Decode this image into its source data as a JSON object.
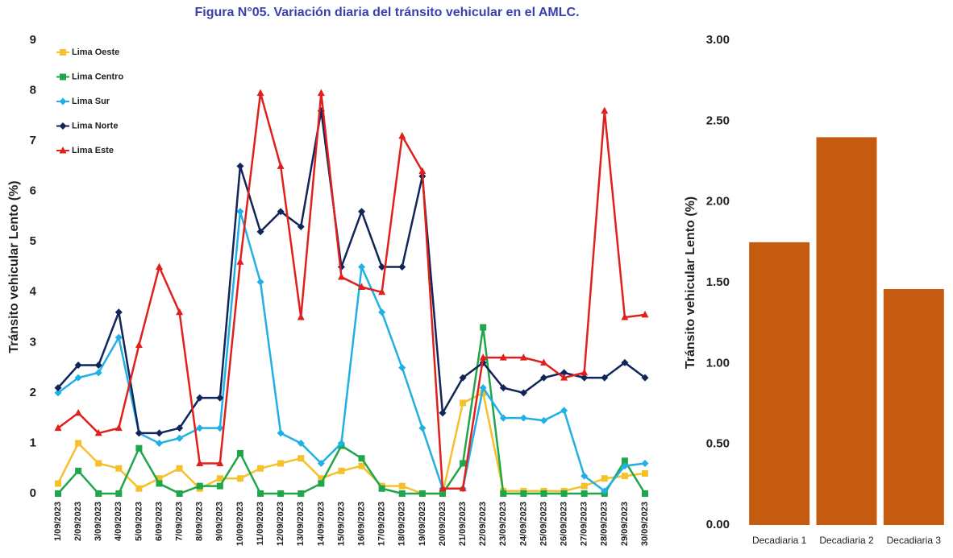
{
  "chart_data": [
    {
      "type": "line",
      "title": "Figura N°05. Variación diaria del tránsito vehicular en el AMLC.",
      "y_label": "Tránsito vehicular Lento (%)",
      "categories": [
        "1/09/2023",
        "2/09/2023",
        "3/09/2023",
        "4/09/2023",
        "5/09/2023",
        "6/09/2023",
        "7/09/2023",
        "8/09/2023",
        "9/09/2023",
        "10/09/2023",
        "11/09/2023",
        "12/09/2023",
        "13/09/2023",
        "14/09/2023",
        "15/09/2023",
        "16/09/2023",
        "17/09/2023",
        "18/09/2023",
        "19/09/2023",
        "20/09/2023",
        "21/09/2023",
        "22/09/2023",
        "23/09/2023",
        "24/09/2023",
        "25/09/2023",
        "26/09/2023",
        "27/09/2023",
        "28/09/2023",
        "29/09/2023",
        "30/09/2023"
      ],
      "ylim": [
        0,
        9
      ],
      "yticks": [
        0,
        1,
        2,
        3,
        4,
        5,
        6,
        7,
        8,
        9
      ],
      "legend": "upper left",
      "series": [
        {
          "name": "Lima Oeste",
          "color": "#f5c02a",
          "marker": "square",
          "values": [
            0.2,
            1.0,
            0.6,
            0.5,
            0.1,
            0.3,
            0.5,
            0.1,
            0.3,
            0.3,
            0.5,
            0.6,
            0.7,
            0.3,
            0.45,
            0.55,
            0.15,
            0.15,
            0.0,
            0.0,
            1.8,
            2.0,
            0.05,
            0.05,
            0.05,
            0.05,
            0.15,
            0.3,
            0.35,
            0.4
          ]
        },
        {
          "name": "Lima Centro",
          "color": "#1fa64a",
          "marker": "square",
          "values": [
            0,
            0.45,
            0,
            0,
            0.9,
            0.2,
            0,
            0.15,
            0.15,
            0.8,
            0,
            0,
            0,
            0.2,
            0.95,
            0.7,
            0.1,
            0,
            0,
            0,
            0.6,
            3.3,
            0,
            0,
            0,
            0,
            0,
            0,
            0.65,
            0
          ]
        },
        {
          "name": "Lima Sur",
          "color": "#21b0e5",
          "marker": "diamond",
          "values": [
            2.0,
            2.3,
            2.4,
            3.1,
            1.2,
            1.0,
            1.1,
            1.3,
            1.3,
            5.6,
            4.2,
            1.2,
            1.0,
            0.6,
            1.0,
            4.5,
            3.6,
            2.5,
            1.3,
            0.1,
            0.1,
            2.1,
            1.5,
            1.5,
            1.45,
            1.65,
            0.35,
            0.05,
            0.55,
            0.6
          ]
        },
        {
          "name": "Lima Norte",
          "color": "#10255a",
          "marker": "diamond",
          "values": [
            2.1,
            2.55,
            2.55,
            3.6,
            1.2,
            1.2,
            1.3,
            1.9,
            1.9,
            6.5,
            5.2,
            5.6,
            5.3,
            7.6,
            4.5,
            5.6,
            4.5,
            4.5,
            6.3,
            1.6,
            2.3,
            2.6,
            2.1,
            2.0,
            2.3,
            2.4,
            2.3,
            2.3,
            2.6,
            2.3
          ]
        },
        {
          "name": "Lima Este",
          "color": "#e0201c",
          "marker": "triangle",
          "values": [
            1.3,
            1.6,
            1.2,
            1.3,
            2.95,
            4.5,
            3.6,
            0.6,
            0.6,
            4.6,
            7.95,
            6.5,
            3.5,
            7.95,
            4.3,
            4.1,
            4.0,
            7.1,
            6.4,
            0.1,
            0.1,
            2.7,
            2.7,
            2.7,
            2.6,
            2.3,
            2.4,
            7.6,
            3.5,
            3.55
          ]
        }
      ]
    },
    {
      "type": "bar",
      "y_label": "Tránsito vehicular Lento (%)",
      "categories": [
        "Decadiaria 1",
        "Decadiaria 2",
        "Decadiaria 3"
      ],
      "values": [
        1.75,
        2.4,
        1.46
      ],
      "color": "#c55a11",
      "ylim": [
        0,
        3
      ],
      "yticks": [
        {
          "value": 0,
          "label": "0.00"
        },
        {
          "value": 0.5,
          "label": "0.50"
        },
        {
          "value": 1,
          "label": "1.00"
        },
        {
          "value": 1.5,
          "label": "1.50"
        },
        {
          "value": 2,
          "label": "2.00"
        },
        {
          "value": 2.5,
          "label": "2.50"
        },
        {
          "value": 3,
          "label": "3.00"
        }
      ]
    }
  ]
}
